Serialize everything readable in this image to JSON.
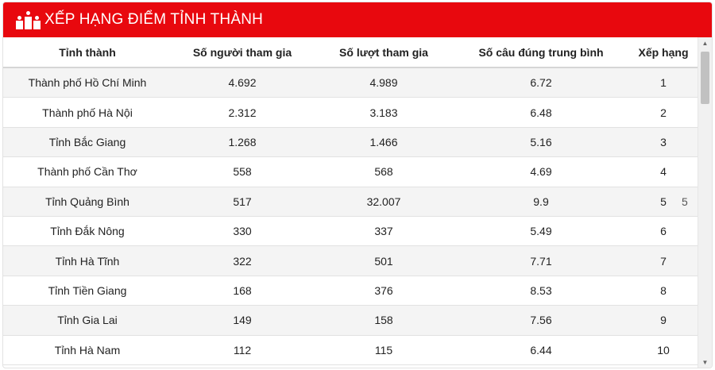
{
  "header": {
    "title": "XẾP HẠNG ĐIỂM TỈNH THÀNH",
    "icon": "podium-icon"
  },
  "table": {
    "columns": [
      "Tỉnh thành",
      "Số người tham gia",
      "Số lượt tham gia",
      "Số câu đúng trung bình",
      "Xếp hạng"
    ],
    "rows": [
      [
        "Thành phố Hồ Chí Minh",
        "4.692",
        "4.989",
        "6.72",
        "1"
      ],
      [
        "Thành phố Hà Nội",
        "2.312",
        "3.183",
        "6.48",
        "2"
      ],
      [
        "Tỉnh Bắc Giang",
        "1.268",
        "1.466",
        "5.16",
        "3"
      ],
      [
        "Thành phố Cần Thơ",
        "558",
        "568",
        "4.69",
        "4"
      ],
      [
        "Tỉnh Quảng Bình",
        "517",
        "32.007",
        "9.9",
        "5"
      ],
      [
        "Tỉnh Đắk Nông",
        "330",
        "337",
        "5.49",
        "6"
      ],
      [
        "Tỉnh Hà Tĩnh",
        "322",
        "501",
        "7.71",
        "7"
      ],
      [
        "Tỉnh Tiền Giang",
        "168",
        "376",
        "8.53",
        "8"
      ],
      [
        "Tỉnh Gia Lai",
        "149",
        "158",
        "7.56",
        "9"
      ],
      [
        "Tỉnh Hà Nam",
        "112",
        "115",
        "6.44",
        "10"
      ]
    ]
  },
  "stray_text": "5",
  "colors": {
    "header_bg": "#e8080e",
    "header_text": "#ffffff"
  }
}
